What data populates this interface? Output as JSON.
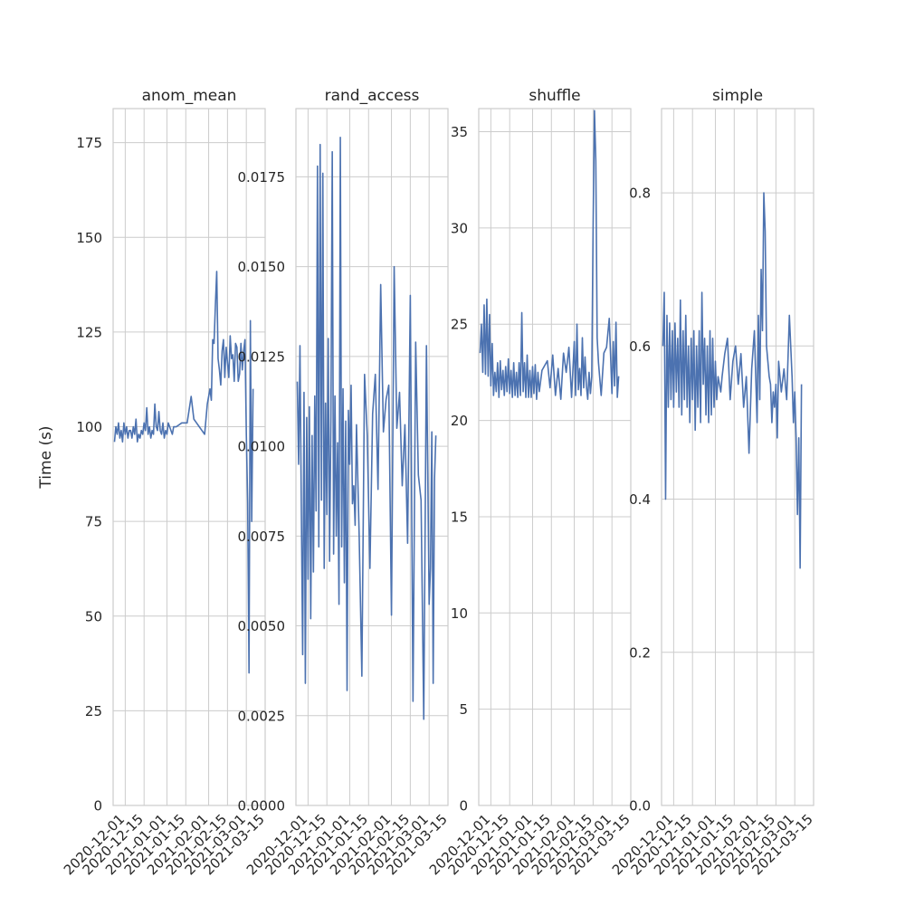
{
  "ylabel": "Time (s)",
  "colors": {
    "line": "#4c72b0",
    "grid": "#cccccc",
    "spine": "#cccccc",
    "text": "#262626"
  },
  "chart_data": [
    {
      "type": "line",
      "title": "anom_mean",
      "xlabel": "",
      "ylabel": "Time (s)",
      "grid": true,
      "xlim": [
        "2020-11-22",
        "2021-03-15"
      ],
      "ylim": [
        0,
        184
      ],
      "yticks": [
        "0",
        "25",
        "50",
        "75",
        "100",
        "125",
        "150",
        "175"
      ],
      "xticks": [
        "2020-12-01",
        "2020-12-15",
        "2021-01-01",
        "2021-01-15",
        "2021-02-01",
        "2021-02-15",
        "2021-03-01",
        "2021-03-15"
      ],
      "series": [
        {
          "x": [
            "2020-11-23",
            "2020-11-24",
            "2020-11-25",
            "2020-11-26",
            "2020-11-27",
            "2020-11-28",
            "2020-11-29",
            "2020-11-30",
            "2020-12-01",
            "2020-12-02",
            "2020-12-03",
            "2020-12-04",
            "2020-12-05",
            "2020-12-06",
            "2020-12-07",
            "2020-12-08",
            "2020-12-09",
            "2020-12-10",
            "2020-12-11",
            "2020-12-12",
            "2020-12-13",
            "2020-12-14",
            "2020-12-15",
            "2020-12-16",
            "2020-12-17",
            "2020-12-18",
            "2020-12-19",
            "2020-12-20",
            "2020-12-21",
            "2020-12-22",
            "2020-12-23",
            "2020-12-24",
            "2020-12-25",
            "2020-12-26",
            "2020-12-27",
            "2020-12-28",
            "2020-12-29",
            "2020-12-30",
            "2020-12-31",
            "2021-01-01",
            "2021-01-02",
            "2021-01-03",
            "2021-01-04",
            "2021-01-05",
            "2021-01-06",
            "2021-01-08",
            "2021-01-12",
            "2021-01-14",
            "2021-01-16",
            "2021-01-19",
            "2021-01-21",
            "2021-01-23",
            "2021-01-25",
            "2021-01-27",
            "2021-01-29",
            "2021-01-31",
            "2021-02-02",
            "2021-02-03",
            "2021-02-04",
            "2021-02-05",
            "2021-02-06",
            "2021-02-07",
            "2021-02-08",
            "2021-02-09",
            "2021-02-10",
            "2021-02-11",
            "2021-02-12",
            "2021-02-13",
            "2021-02-14",
            "2021-02-15",
            "2021-02-16",
            "2021-02-17",
            "2021-02-18",
            "2021-02-19",
            "2021-02-20",
            "2021-02-21",
            "2021-02-22",
            "2021-02-23",
            "2021-02-24",
            "2021-02-25",
            "2021-02-26",
            "2021-02-27",
            "2021-02-28",
            "2021-03-01",
            "2021-03-02",
            "2021-03-03",
            "2021-03-04",
            "2021-03-05",
            "2021-03-06"
          ],
          "y": [
            96,
            100,
            98,
            101,
            97,
            99,
            96,
            101,
            98,
            100,
            97,
            99,
            99,
            97,
            100,
            98,
            102,
            96,
            98,
            97,
            99,
            98,
            101,
            99,
            105,
            98,
            100,
            97,
            99,
            98,
            106,
            100,
            99,
            104,
            99,
            98,
            101,
            97,
            99,
            98,
            101,
            100,
            99,
            98,
            100,
            100,
            101,
            101,
            101,
            108,
            102,
            101,
            100,
            99,
            98,
            106,
            110,
            107,
            123,
            122,
            132,
            141,
            118,
            115,
            111,
            120,
            123,
            113,
            121,
            117,
            113,
            124,
            118,
            119,
            112,
            122,
            121,
            112,
            114,
            122,
            115,
            120,
            123,
            98,
            80,
            35,
            128,
            75,
            110
          ]
        }
      ]
    },
    {
      "type": "line",
      "title": "rand_access",
      "xlabel": "",
      "ylabel": "",
      "grid": true,
      "xlim": [
        "2020-11-22",
        "2021-03-15"
      ],
      "ylim": [
        0,
        0.0194
      ],
      "yticks": [
        "0.0000",
        "0.0025",
        "0.0050",
        "0.0075",
        "0.0100",
        "0.0125",
        "0.0150",
        "0.0175"
      ],
      "xticks": [
        "2020-12-01",
        "2020-12-15",
        "2021-01-01",
        "2021-01-15",
        "2021-02-01",
        "2021-02-15",
        "2021-03-01",
        "2021-03-15"
      ],
      "series": [
        {
          "x": [
            "2020-11-23",
            "2020-11-24",
            "2020-11-25",
            "2020-11-26",
            "2020-11-27",
            "2020-11-28",
            "2020-11-29",
            "2020-11-30",
            "2020-12-01",
            "2020-12-02",
            "2020-12-03",
            "2020-12-04",
            "2020-12-05",
            "2020-12-06",
            "2020-12-07",
            "2020-12-08",
            "2020-12-09",
            "2020-12-10",
            "2020-12-11",
            "2020-12-12",
            "2020-12-13",
            "2020-12-14",
            "2020-12-15",
            "2020-12-16",
            "2020-12-17",
            "2020-12-18",
            "2020-12-19",
            "2020-12-20",
            "2020-12-21",
            "2020-12-22",
            "2020-12-23",
            "2020-12-24",
            "2020-12-25",
            "2020-12-26",
            "2020-12-27",
            "2020-12-28",
            "2020-12-29",
            "2020-12-30",
            "2020-12-31",
            "2021-01-01",
            "2021-01-02",
            "2021-01-03",
            "2021-01-04",
            "2021-01-05",
            "2021-01-06",
            "2021-01-08",
            "2021-01-10",
            "2021-01-12",
            "2021-01-14",
            "2021-01-16",
            "2021-01-18",
            "2021-01-20",
            "2021-01-22",
            "2021-01-24",
            "2021-01-26",
            "2021-01-28",
            "2021-01-30",
            "2021-02-01",
            "2021-02-03",
            "2021-02-05",
            "2021-02-07",
            "2021-02-09",
            "2021-02-11",
            "2021-02-13",
            "2021-02-15",
            "2021-02-17",
            "2021-02-19",
            "2021-02-21",
            "2021-02-23",
            "2021-02-25",
            "2021-02-27",
            "2021-03-01",
            "2021-03-02",
            "2021-03-03",
            "2021-03-04",
            "2021-03-05",
            "2021-03-06"
          ],
          "y": [
            0.0118,
            0.0095,
            0.0128,
            0.0083,
            0.0042,
            0.0115,
            0.0034,
            0.0108,
            0.0063,
            0.0111,
            0.0052,
            0.0103,
            0.0065,
            0.0114,
            0.0082,
            0.0178,
            0.0072,
            0.0184,
            0.0085,
            0.0176,
            0.0066,
            0.0112,
            0.0081,
            0.013,
            0.0068,
            0.0108,
            0.0182,
            0.007,
            0.0114,
            0.0075,
            0.0101,
            0.0056,
            0.0186,
            0.0072,
            0.0116,
            0.0062,
            0.0107,
            0.0032,
            0.011,
            0.0095,
            0.0117,
            0.0084,
            0.0089,
            0.0078,
            0.0106,
            0.0075,
            0.0036,
            0.012,
            0.0103,
            0.0066,
            0.0109,
            0.012,
            0.0088,
            0.0145,
            0.0104,
            0.0113,
            0.0117,
            0.0053,
            0.015,
            0.0105,
            0.0115,
            0.0089,
            0.0106,
            0.0073,
            0.0142,
            0.0029,
            0.0129,
            0.0092,
            0.0085,
            0.0024,
            0.0128,
            0.0056,
            0.0066,
            0.0104,
            0.0034,
            0.0091,
            0.0103
          ]
        }
      ]
    },
    {
      "type": "line",
      "title": "shuffle",
      "xlabel": "",
      "ylabel": "",
      "grid": true,
      "xlim": [
        "2020-11-22",
        "2021-03-15"
      ],
      "ylim": [
        0,
        36.2
      ],
      "yticks": [
        "0",
        "5",
        "10",
        "15",
        "20",
        "25",
        "30",
        "35"
      ],
      "xticks": [
        "2020-12-01",
        "2020-12-15",
        "2021-01-01",
        "2021-01-15",
        "2021-02-01",
        "2021-02-15",
        "2021-03-01",
        "2021-03-15"
      ],
      "series": [
        {
          "x": [
            "2020-11-23",
            "2020-11-24",
            "2020-11-25",
            "2020-11-26",
            "2020-11-27",
            "2020-11-28",
            "2020-11-29",
            "2020-11-30",
            "2020-12-01",
            "2020-12-02",
            "2020-12-03",
            "2020-12-04",
            "2020-12-05",
            "2020-12-06",
            "2020-12-07",
            "2020-12-08",
            "2020-12-09",
            "2020-12-10",
            "2020-12-11",
            "2020-12-12",
            "2020-12-13",
            "2020-12-14",
            "2020-12-15",
            "2020-12-16",
            "2020-12-17",
            "2020-12-18",
            "2020-12-19",
            "2020-12-20",
            "2020-12-21",
            "2020-12-22",
            "2020-12-23",
            "2020-12-24",
            "2020-12-25",
            "2020-12-26",
            "2020-12-27",
            "2020-12-28",
            "2020-12-29",
            "2020-12-30",
            "2020-12-31",
            "2021-01-01",
            "2021-01-02",
            "2021-01-03",
            "2021-01-04",
            "2021-01-05",
            "2021-01-06",
            "2021-01-08",
            "2021-01-12",
            "2021-01-14",
            "2021-01-16",
            "2021-01-18",
            "2021-01-20",
            "2021-01-22",
            "2021-01-24",
            "2021-01-26",
            "2021-01-28",
            "2021-01-30",
            "2021-02-01",
            "2021-02-02",
            "2021-02-03",
            "2021-02-04",
            "2021-02-05",
            "2021-02-06",
            "2021-02-07",
            "2021-02-08",
            "2021-02-09",
            "2021-02-10",
            "2021-02-11",
            "2021-02-12",
            "2021-02-13",
            "2021-02-14",
            "2021-02-15",
            "2021-02-16",
            "2021-02-17",
            "2021-02-18",
            "2021-02-19",
            "2021-02-21",
            "2021-02-23",
            "2021-02-25",
            "2021-02-27",
            "2021-03-01",
            "2021-03-02",
            "2021-03-03",
            "2021-03-04",
            "2021-03-05",
            "2021-03-06"
          ],
          "y": [
            23.5,
            25,
            22.5,
            26,
            22.4,
            26.3,
            22.3,
            25.5,
            21.8,
            24,
            21.3,
            22.5,
            21.5,
            23,
            21.2,
            23.1,
            21.6,
            22.6,
            21.3,
            22.8,
            21.5,
            23.2,
            21.4,
            22.6,
            21.2,
            23,
            21.3,
            22.5,
            21.2,
            23,
            21.3,
            25.6,
            21.5,
            23,
            21.2,
            23.4,
            21.2,
            22.6,
            21.2,
            22.8,
            21.4,
            22.9,
            21.1,
            22.5,
            21.5,
            22.6,
            23.1,
            21.7,
            23.4,
            21.3,
            22.7,
            21.1,
            23.5,
            22.5,
            23.8,
            21.2,
            24.1,
            21.3,
            25,
            21.6,
            22.7,
            21.3,
            24.3,
            21.7,
            23.3,
            21.8,
            21.1,
            22.5,
            21.4,
            22.3,
            30,
            36.1,
            33.5,
            24.3,
            23,
            21.3,
            23.5,
            23.8,
            25.3,
            21.4,
            24.1,
            21.8,
            25.1,
            21.2,
            22.3
          ]
        }
      ]
    },
    {
      "type": "line",
      "title": "simple",
      "xlabel": "",
      "ylabel": "",
      "grid": true,
      "xlim": [
        "2020-11-22",
        "2021-03-15"
      ],
      "ylim": [
        0,
        0.91
      ],
      "yticks": [
        "0.0",
        "0.2",
        "0.4",
        "0.6",
        "0.8"
      ],
      "xticks": [
        "2020-12-01",
        "2020-12-15",
        "2021-01-01",
        "2021-01-15",
        "2021-02-01",
        "2021-02-15",
        "2021-03-01",
        "2021-03-15"
      ],
      "series": [
        {
          "x": [
            "2020-11-23",
            "2020-11-24",
            "2020-11-25",
            "2020-11-26",
            "2020-11-27",
            "2020-11-28",
            "2020-11-29",
            "2020-11-30",
            "2020-12-01",
            "2020-12-02",
            "2020-12-03",
            "2020-12-04",
            "2020-12-05",
            "2020-12-06",
            "2020-12-07",
            "2020-12-08",
            "2020-12-09",
            "2020-12-10",
            "2020-12-11",
            "2020-12-12",
            "2020-12-13",
            "2020-12-14",
            "2020-12-15",
            "2020-12-16",
            "2020-12-17",
            "2020-12-18",
            "2020-12-19",
            "2020-12-20",
            "2020-12-21",
            "2020-12-22",
            "2020-12-23",
            "2020-12-24",
            "2020-12-25",
            "2020-12-26",
            "2020-12-27",
            "2020-12-28",
            "2020-12-29",
            "2020-12-30",
            "2020-12-31",
            "2021-01-01",
            "2021-01-02",
            "2021-01-03",
            "2021-01-04",
            "2021-01-05",
            "2021-01-06",
            "2021-01-08",
            "2021-01-10",
            "2021-01-12",
            "2021-01-14",
            "2021-01-16",
            "2021-01-18",
            "2021-01-20",
            "2021-01-22",
            "2021-01-24",
            "2021-01-26",
            "2021-01-28",
            "2021-01-30",
            "2021-02-01",
            "2021-02-02",
            "2021-02-03",
            "2021-02-04",
            "2021-02-05",
            "2021-02-06",
            "2021-02-07",
            "2021-02-08",
            "2021-02-09",
            "2021-02-10",
            "2021-02-11",
            "2021-02-12",
            "2021-02-13",
            "2021-02-14",
            "2021-02-15",
            "2021-02-16",
            "2021-02-17",
            "2021-02-19",
            "2021-02-21",
            "2021-02-23",
            "2021-02-25",
            "2021-02-27",
            "2021-02-28",
            "2021-03-01",
            "2021-03-02",
            "2021-03-03",
            "2021-03-04",
            "2021-03-05",
            "2021-03-06"
          ],
          "y": [
            0.6,
            0.67,
            0.4,
            0.64,
            0.52,
            0.63,
            0.53,
            0.62,
            0.52,
            0.63,
            0.54,
            0.61,
            0.52,
            0.66,
            0.51,
            0.62,
            0.53,
            0.64,
            0.52,
            0.6,
            0.5,
            0.61,
            0.53,
            0.62,
            0.49,
            0.6,
            0.52,
            0.62,
            0.5,
            0.67,
            0.55,
            0.61,
            0.51,
            0.6,
            0.5,
            0.62,
            0.51,
            0.61,
            0.52,
            0.58,
            0.53,
            0.56,
            0.55,
            0.54,
            0.56,
            0.59,
            0.61,
            0.53,
            0.58,
            0.6,
            0.55,
            0.59,
            0.52,
            0.56,
            0.46,
            0.57,
            0.62,
            0.5,
            0.64,
            0.53,
            0.7,
            0.62,
            0.8,
            0.75,
            0.6,
            0.58,
            0.56,
            0.55,
            0.5,
            0.54,
            0.52,
            0.55,
            0.48,
            0.58,
            0.54,
            0.57,
            0.53,
            0.64,
            0.56,
            0.5,
            0.54,
            0.48,
            0.38,
            0.48,
            0.31,
            0.55
          ]
        }
      ]
    }
  ]
}
